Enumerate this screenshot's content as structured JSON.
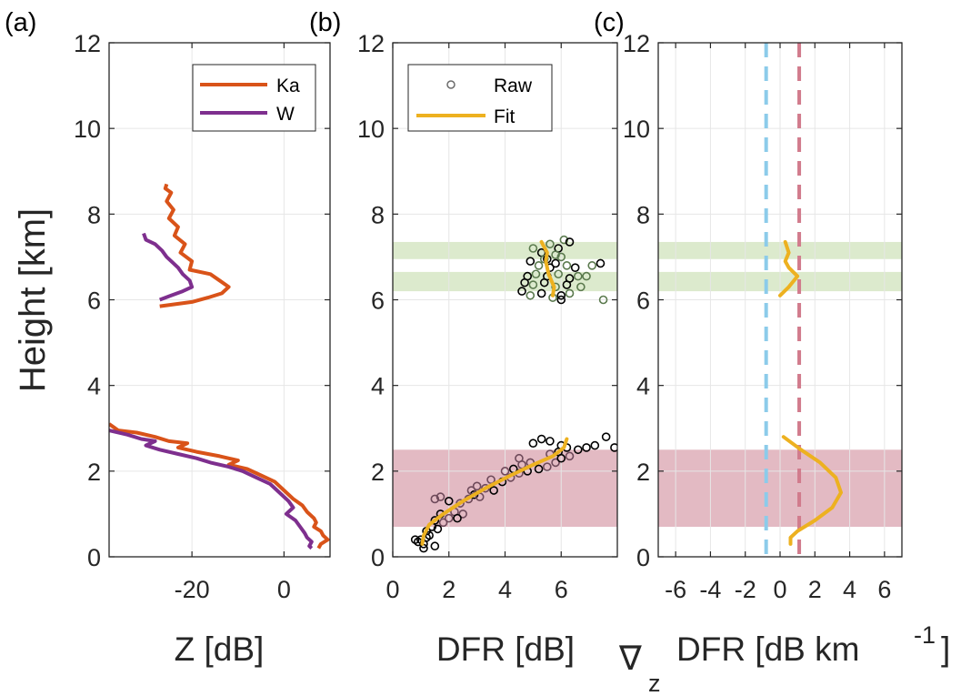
{
  "figure": {
    "y_label": "Height [km]",
    "y_range": [
      0,
      12
    ],
    "y_ticks": [
      0,
      2,
      4,
      6,
      8,
      10,
      12
    ]
  },
  "colors": {
    "ka": "#D95319",
    "w": "#7E2F8E",
    "fit": "#EDB120",
    "raw_dark": "#000000",
    "raw_green": "#5B7A4E",
    "raw_mauve": "#6E4A5A",
    "band_green": "#D8E8C8",
    "band_red": "#E0B2BC",
    "vline_blue": "#8CCBEA",
    "vline_red": "#D17B8C"
  },
  "chart_data": [
    {
      "type": "line",
      "panel_label": "(a)",
      "xlabel": "Z [dB]",
      "xlim": [
        -38,
        10
      ],
      "x_ticks": [
        -20,
        0
      ],
      "grid": true,
      "legend": "top-right",
      "series": [
        {
          "name": "Ka",
          "segments": [
            [
              [
                -25.5,
                8.7
              ],
              [
                -25.8,
                8.6
              ],
              [
                -24.5,
                8.5
              ],
              [
                -25.5,
                8.3
              ],
              [
                -24,
                8.1
              ],
              [
                -25,
                7.9
              ],
              [
                -23,
                7.7
              ],
              [
                -23.8,
                7.5
              ],
              [
                -21.5,
                7.3
              ],
              [
                -22.5,
                7.1
              ],
              [
                -20,
                6.9
              ],
              [
                -20.5,
                6.7
              ],
              [
                -16,
                6.6
              ],
              [
                -14,
                6.45
              ],
              [
                -12,
                6.3
              ],
              [
                -13.5,
                6.15
              ],
              [
                -16.5,
                6.05
              ],
              [
                -20,
                5.95
              ],
              [
                -27,
                5.85
              ]
            ],
            [
              [
                -38,
                3.1
              ],
              [
                -36,
                2.95
              ],
              [
                -32,
                2.9
              ],
              [
                -28,
                2.8
              ],
              [
                -25,
                2.7
              ],
              [
                -21,
                2.65
              ],
              [
                -23,
                2.55
              ],
              [
                -19,
                2.45
              ],
              [
                -14,
                2.35
              ],
              [
                -10,
                2.25
              ],
              [
                -12,
                2.15
              ],
              [
                -8,
                2.05
              ],
              [
                -5,
                1.9
              ],
              [
                -2,
                1.75
              ],
              [
                0,
                1.55
              ],
              [
                2,
                1.35
              ],
              [
                4,
                1.2
              ],
              [
                5,
                1.05
              ],
              [
                6.5,
                0.9
              ],
              [
                7,
                0.8
              ],
              [
                6.5,
                0.7
              ],
              [
                8,
                0.6
              ],
              [
                8.5,
                0.5
              ],
              [
                9.5,
                0.4
              ],
              [
                8,
                0.3
              ],
              [
                7.5,
                0.2
              ]
            ]
          ]
        },
        {
          "name": "W",
          "segments": [
            [
              [
                -30.5,
                7.55
              ],
              [
                -30,
                7.4
              ],
              [
                -28,
                7.3
              ],
              [
                -26.5,
                7.15
              ],
              [
                -25.5,
                7.0
              ],
              [
                -24.5,
                6.9
              ],
              [
                -23,
                6.75
              ],
              [
                -22,
                6.6
              ],
              [
                -20.5,
                6.45
              ],
              [
                -20,
                6.3
              ],
              [
                -22,
                6.2
              ],
              [
                -24.5,
                6.1
              ],
              [
                -27,
                6.0
              ]
            ],
            [
              [
                -38,
                2.95
              ],
              [
                -34,
                2.85
              ],
              [
                -31,
                2.75
              ],
              [
                -28,
                2.7
              ],
              [
                -30,
                2.6
              ],
              [
                -27,
                2.5
              ],
              [
                -23,
                2.4
              ],
              [
                -19,
                2.3
              ],
              [
                -16,
                2.2
              ],
              [
                -12,
                2.1
              ],
              [
                -9,
                2.0
              ],
              [
                -6,
                1.85
              ],
              [
                -3,
                1.7
              ],
              [
                -1,
                1.5
              ],
              [
                1,
                1.3
              ],
              [
                2,
                1.15
              ],
              [
                0.5,
                1.0
              ],
              [
                2.5,
                0.85
              ],
              [
                3.5,
                0.7
              ],
              [
                4.5,
                0.55
              ],
              [
                5,
                0.45
              ],
              [
                6,
                0.35
              ],
              [
                5.5,
                0.25
              ],
              [
                6,
                0.2
              ]
            ]
          ]
        }
      ]
    },
    {
      "type": "scatter",
      "panel_label": "(b)",
      "xlabel": "DFR [dB]",
      "xlim": [
        0,
        8
      ],
      "x_ticks": [
        0,
        2,
        4,
        6
      ],
      "grid": true,
      "legend": "top-left",
      "shaded_ranges": [
        {
          "y": [
            6.95,
            7.35
          ],
          "color": "band_green"
        },
        {
          "y": [
            6.2,
            6.65
          ],
          "color": "band_green"
        },
        {
          "y": [
            0.7,
            2.5
          ],
          "color": "band_red"
        }
      ],
      "raw_series": {
        "name": "Raw",
        "points": [
          [
            5.0,
            7.2
          ],
          [
            5.3,
            7.1
          ],
          [
            5.6,
            7.3
          ],
          [
            5.9,
            7.2
          ],
          [
            6.1,
            7.4
          ],
          [
            6.3,
            7.35
          ],
          [
            5.4,
            6.95
          ],
          [
            5.8,
            6.85
          ],
          [
            6.0,
            7.0
          ],
          [
            4.9,
            6.9
          ],
          [
            5.2,
            6.8
          ],
          [
            5.6,
            6.75
          ],
          [
            6.2,
            6.8
          ],
          [
            6.5,
            6.75
          ],
          [
            7.1,
            6.8
          ],
          [
            7.4,
            6.85
          ],
          [
            5.1,
            6.6
          ],
          [
            5.5,
            6.55
          ],
          [
            5.9,
            6.6
          ],
          [
            6.3,
            6.5
          ],
          [
            6.6,
            6.55
          ],
          [
            4.7,
            6.4
          ],
          [
            5.0,
            6.35
          ],
          [
            5.4,
            6.4
          ],
          [
            5.8,
            6.3
          ],
          [
            6.2,
            6.35
          ],
          [
            6.7,
            6.3
          ],
          [
            4.6,
            6.2
          ],
          [
            4.9,
            6.1
          ],
          [
            5.3,
            6.15
          ],
          [
            5.7,
            6.05
          ],
          [
            6.0,
            6.1
          ],
          [
            6.3,
            6.15
          ],
          [
            6.0,
            6.0
          ],
          [
            7.5,
            6.0
          ],
          [
            5.5,
            6.95
          ],
          [
            5.8,
            7.05
          ],
          [
            4.8,
            6.55
          ],
          [
            6.9,
            6.55
          ],
          [
            1.0,
            0.4
          ],
          [
            0.9,
            0.35
          ],
          [
            1.1,
            0.3
          ],
          [
            1.2,
            0.45
          ],
          [
            1.3,
            0.5
          ],
          [
            1.5,
            0.25
          ],
          [
            1.2,
            0.6
          ],
          [
            1.4,
            0.7
          ],
          [
            1.6,
            0.65
          ],
          [
            1.5,
            0.85
          ],
          [
            1.8,
            0.8
          ],
          [
            2.0,
            0.9
          ],
          [
            1.7,
            1.0
          ],
          [
            2.2,
            1.05
          ],
          [
            2.5,
            1.0
          ],
          [
            2.3,
            0.9
          ],
          [
            1.5,
            1.35
          ],
          [
            1.7,
            1.4
          ],
          [
            2.0,
            1.3
          ],
          [
            2.4,
            1.25
          ],
          [
            2.7,
            1.35
          ],
          [
            2.9,
            1.45
          ],
          [
            3.1,
            1.4
          ],
          [
            3.3,
            1.6
          ],
          [
            3.6,
            1.55
          ],
          [
            3.0,
            1.65
          ],
          [
            2.8,
            1.55
          ],
          [
            3.9,
            1.75
          ],
          [
            4.2,
            1.85
          ],
          [
            4.5,
            1.95
          ],
          [
            4.8,
            2.0
          ],
          [
            4.6,
            2.15
          ],
          [
            4.9,
            2.2
          ],
          [
            5.2,
            2.05
          ],
          [
            5.5,
            2.1
          ],
          [
            5.8,
            2.2
          ],
          [
            6.0,
            2.3
          ],
          [
            6.3,
            2.35
          ],
          [
            5.6,
            2.4
          ],
          [
            5.9,
            2.45
          ],
          [
            6.2,
            2.55
          ],
          [
            6.6,
            2.5
          ],
          [
            6.9,
            2.55
          ],
          [
            7.2,
            2.6
          ],
          [
            7.6,
            2.8
          ],
          [
            7.9,
            2.55
          ],
          [
            5.0,
            2.65
          ],
          [
            5.3,
            2.75
          ],
          [
            5.6,
            2.7
          ],
          [
            6.0,
            2.6
          ],
          [
            4.5,
            2.3
          ],
          [
            4.3,
            2.05
          ],
          [
            4.0,
            2.0
          ],
          [
            3.5,
            1.8
          ],
          [
            1.1,
            0.2
          ],
          [
            0.8,
            0.4
          ]
        ]
      },
      "fit_series": {
        "name": "Fit",
        "segments": [
          [
            [
              5.7,
              6.1
            ],
            [
              5.75,
              6.3
            ],
            [
              5.55,
              6.6
            ],
            [
              5.45,
              6.9
            ],
            [
              5.5,
              7.1
            ],
            [
              5.3,
              7.35
            ]
          ],
          [
            [
              1.05,
              0.3
            ],
            [
              1.1,
              0.5
            ],
            [
              1.3,
              0.75
            ],
            [
              1.8,
              1.0
            ],
            [
              2.5,
              1.3
            ],
            [
              3.3,
              1.6
            ],
            [
              4.2,
              1.9
            ],
            [
              5.0,
              2.15
            ],
            [
              5.7,
              2.35
            ],
            [
              6.1,
              2.55
            ],
            [
              6.2,
              2.75
            ]
          ]
        ]
      }
    },
    {
      "type": "line",
      "panel_label": "(c)",
      "xlabel_main": "∇",
      "xlabel_sub": "z",
      "xlabel_text": "DFR [dB km",
      "xlabel_sup": "-1",
      "xlabel_close": "]",
      "xlim": [
        -7,
        7
      ],
      "x_ticks": [
        -6,
        -4,
        -2,
        0,
        2,
        4,
        6
      ],
      "grid": true,
      "shaded_ranges": [
        {
          "y": [
            6.95,
            7.35
          ],
          "color": "band_green"
        },
        {
          "y": [
            6.2,
            6.65
          ],
          "color": "band_green"
        }
      ],
      "shaded_ranges_red": [
        {
          "y": [
            0.7,
            2.5
          ],
          "color": "band_red"
        }
      ],
      "vertical_lines": [
        {
          "x": -0.8,
          "color": "vline_blue"
        },
        {
          "x": 1.1,
          "color": "vline_red"
        }
      ],
      "fit_segments": [
        [
          [
            0.3,
            7.35
          ],
          [
            0.5,
            7.1
          ],
          [
            0.3,
            6.9
          ],
          [
            0.5,
            6.75
          ],
          [
            1.0,
            6.55
          ],
          [
            0.5,
            6.3
          ],
          [
            0.0,
            6.1
          ]
        ],
        [
          [
            0.2,
            2.8
          ],
          [
            1.2,
            2.5
          ],
          [
            2.3,
            2.2
          ],
          [
            3.2,
            1.85
          ],
          [
            3.5,
            1.5
          ],
          [
            3.0,
            1.15
          ],
          [
            2.0,
            0.85
          ],
          [
            1.0,
            0.6
          ],
          [
            0.6,
            0.45
          ],
          [
            0.6,
            0.3
          ]
        ]
      ]
    }
  ]
}
